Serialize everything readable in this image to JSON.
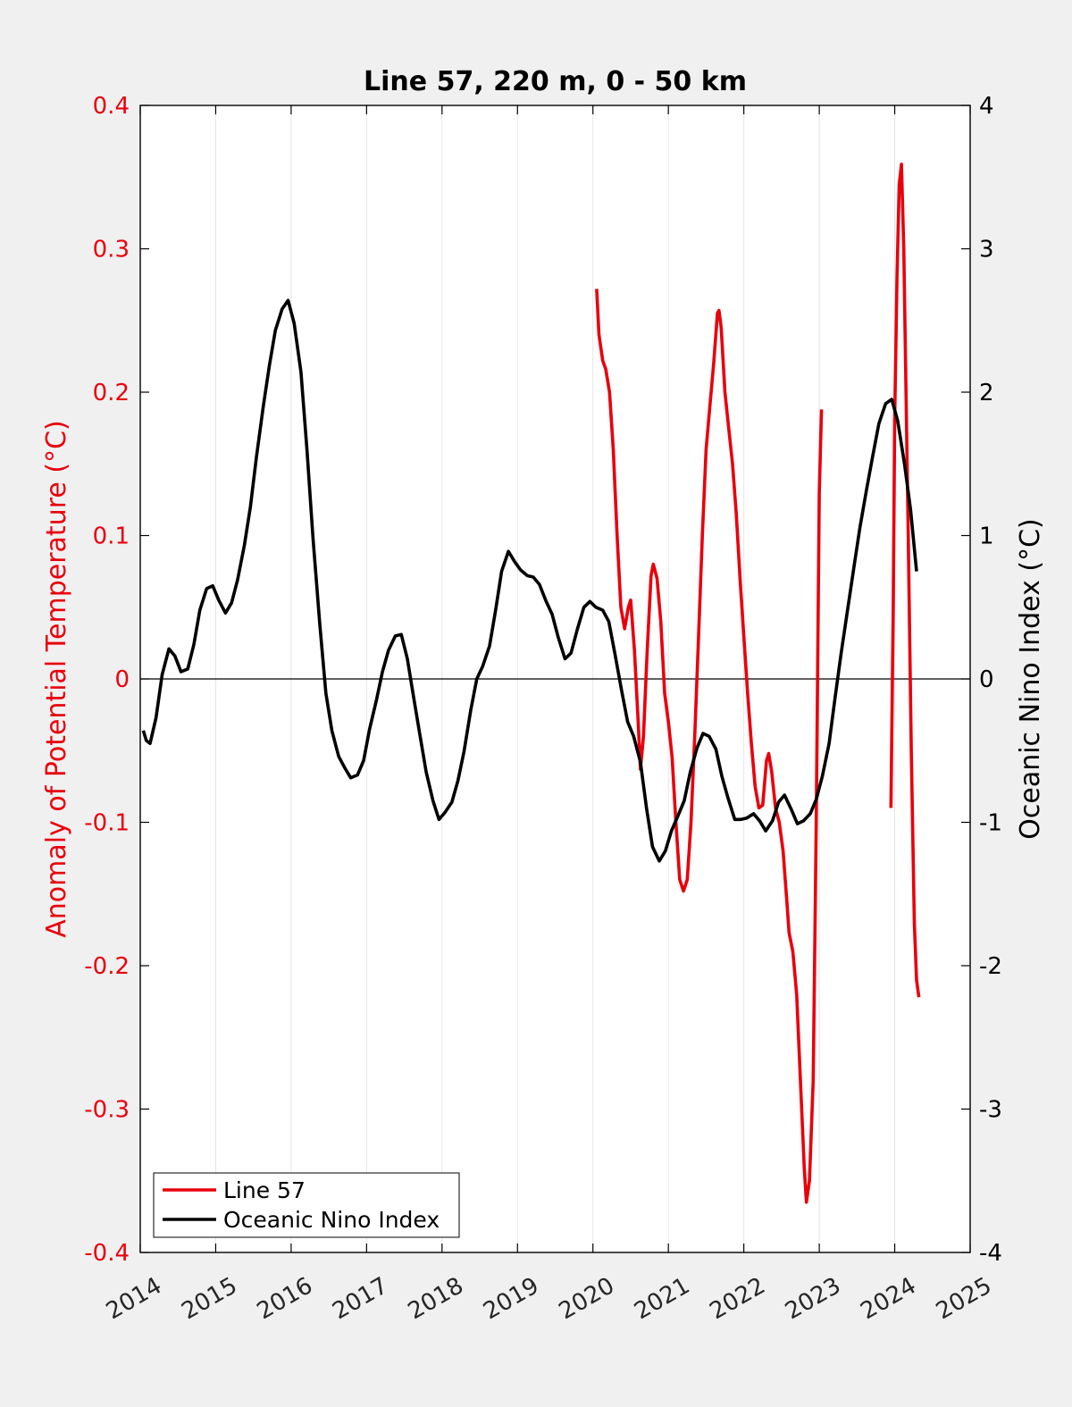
{
  "chart_data": {
    "type": "line",
    "title": "Line 57, 220 m, 0 - 50 km",
    "xlim": [
      2014,
      2025
    ],
    "x_ticks": [
      "2014",
      "2015",
      "2016",
      "2017",
      "2018",
      "2019",
      "2020",
      "2021",
      "2022",
      "2023",
      "2024",
      "2025"
    ],
    "y_left": {
      "label": "Anomaly of Potential Temperature (°C)",
      "lim": [
        -0.4,
        0.4
      ],
      "ticks": [
        "-0.4",
        "-0.3",
        "-0.2",
        "-0.1",
        "0",
        "0.1",
        "0.2",
        "0.3",
        "0.4"
      ],
      "color": "#e8000b"
    },
    "y_right": {
      "label": "Oceanic Nino Index (°C)",
      "lim": [
        -4,
        4
      ],
      "ticks": [
        "-4",
        "-3",
        "-2",
        "-1",
        "0",
        "1",
        "2",
        "3",
        "4"
      ],
      "color": "#000000"
    },
    "grid": "vertical",
    "zero_line": true,
    "legend_position": "bottom-left",
    "series": [
      {
        "name": "Line 57",
        "axis": "left",
        "color": "#e8000b",
        "segments": [
          [
            [
              2020.05,
              0.272
            ],
            [
              2020.08,
              0.24
            ],
            [
              2020.13,
              0.222
            ],
            [
              2020.17,
              0.216
            ],
            [
              2020.22,
              0.2
            ],
            [
              2020.27,
              0.16
            ],
            [
              2020.32,
              0.1
            ],
            [
              2020.37,
              0.05
            ],
            [
              2020.42,
              0.035
            ],
            [
              2020.47,
              0.05
            ],
            [
              2020.5,
              0.055
            ],
            [
              2020.55,
              0.02
            ],
            [
              2020.6,
              -0.03
            ],
            [
              2020.63,
              -0.063
            ],
            [
              2020.67,
              -0.04
            ],
            [
              2020.72,
              0.02
            ],
            [
              2020.77,
              0.072
            ],
            [
              2020.8,
              0.08
            ],
            [
              2020.85,
              0.07
            ],
            [
              2020.9,
              0.04
            ],
            [
              2020.95,
              -0.01
            ],
            [
              2021.0,
              -0.03
            ],
            [
              2021.05,
              -0.055
            ],
            [
              2021.1,
              -0.1
            ],
            [
              2021.15,
              -0.14
            ],
            [
              2021.2,
              -0.148
            ],
            [
              2021.25,
              -0.14
            ],
            [
              2021.3,
              -0.1
            ],
            [
              2021.35,
              -0.04
            ],
            [
              2021.4,
              0.03
            ],
            [
              2021.45,
              0.1
            ],
            [
              2021.5,
              0.16
            ],
            [
              2021.55,
              0.19
            ],
            [
              2021.6,
              0.22
            ],
            [
              2021.65,
              0.255
            ],
            [
              2021.67,
              0.257
            ],
            [
              2021.7,
              0.245
            ],
            [
              2021.75,
              0.2
            ],
            [
              2021.8,
              0.175
            ],
            [
              2021.85,
              0.15
            ],
            [
              2021.9,
              0.115
            ],
            [
              2021.95,
              0.07
            ],
            [
              2022.0,
              0.03
            ],
            [
              2022.05,
              -0.01
            ],
            [
              2022.1,
              -0.045
            ],
            [
              2022.15,
              -0.075
            ],
            [
              2022.2,
              -0.09
            ],
            [
              2022.25,
              -0.088
            ],
            [
              2022.3,
              -0.057
            ],
            [
              2022.33,
              -0.052
            ],
            [
              2022.37,
              -0.065
            ],
            [
              2022.42,
              -0.09
            ],
            [
              2022.47,
              -0.1
            ],
            [
              2022.52,
              -0.12
            ],
            [
              2022.57,
              -0.155
            ],
            [
              2022.6,
              -0.177
            ],
            [
              2022.65,
              -0.19
            ],
            [
              2022.7,
              -0.22
            ],
            [
              2022.75,
              -0.28
            ],
            [
              2022.8,
              -0.34
            ],
            [
              2022.83,
              -0.365
            ],
            [
              2022.87,
              -0.35
            ],
            [
              2022.92,
              -0.28
            ],
            [
              2022.96,
              -0.1
            ],
            [
              2023.0,
              0.13
            ],
            [
              2023.03,
              0.188
            ]
          ],
          [
            [
              2023.95,
              -0.09
            ],
            [
              2023.98,
              0.05
            ],
            [
              2024.0,
              0.18
            ],
            [
              2024.03,
              0.28
            ],
            [
              2024.06,
              0.345
            ],
            [
              2024.09,
              0.359
            ],
            [
              2024.12,
              0.3
            ],
            [
              2024.15,
              0.2
            ],
            [
              2024.18,
              0.1
            ],
            [
              2024.22,
              -0.05
            ],
            [
              2024.26,
              -0.17
            ],
            [
              2024.29,
              -0.21
            ],
            [
              2024.32,
              -0.222
            ]
          ]
        ]
      },
      {
        "name": "Oceanic Nino Index",
        "axis": "right",
        "color": "#000000",
        "points": [
          [
            2014.04,
            -0.36
          ],
          [
            2014.08,
            -0.43
          ],
          [
            2014.13,
            -0.45
          ],
          [
            2014.21,
            -0.27
          ],
          [
            2014.29,
            0.03
          ],
          [
            2014.38,
            0.21
          ],
          [
            2014.46,
            0.16
          ],
          [
            2014.54,
            0.05
          ],
          [
            2014.63,
            0.07
          ],
          [
            2014.71,
            0.24
          ],
          [
            2014.79,
            0.48
          ],
          [
            2014.88,
            0.63
          ],
          [
            2014.96,
            0.65
          ],
          [
            2015.04,
            0.55
          ],
          [
            2015.13,
            0.46
          ],
          [
            2015.21,
            0.53
          ],
          [
            2015.29,
            0.69
          ],
          [
            2015.38,
            0.93
          ],
          [
            2015.46,
            1.2
          ],
          [
            2015.54,
            1.55
          ],
          [
            2015.63,
            1.9
          ],
          [
            2015.71,
            2.18
          ],
          [
            2015.79,
            2.43
          ],
          [
            2015.88,
            2.58
          ],
          [
            2015.96,
            2.64
          ],
          [
            2016.04,
            2.48
          ],
          [
            2016.13,
            2.14
          ],
          [
            2016.21,
            1.6
          ],
          [
            2016.29,
            0.98
          ],
          [
            2016.38,
            0.38
          ],
          [
            2016.46,
            -0.1
          ],
          [
            2016.54,
            -0.36
          ],
          [
            2016.63,
            -0.54
          ],
          [
            2016.71,
            -0.62
          ],
          [
            2016.79,
            -0.69
          ],
          [
            2016.88,
            -0.67
          ],
          [
            2016.96,
            -0.57
          ],
          [
            2017.04,
            -0.35
          ],
          [
            2017.13,
            -0.15
          ],
          [
            2017.21,
            0.05
          ],
          [
            2017.29,
            0.2
          ],
          [
            2017.38,
            0.3
          ],
          [
            2017.46,
            0.31
          ],
          [
            2017.54,
            0.14
          ],
          [
            2017.63,
            -0.15
          ],
          [
            2017.71,
            -0.4
          ],
          [
            2017.79,
            -0.65
          ],
          [
            2017.88,
            -0.85
          ],
          [
            2017.96,
            -0.98
          ],
          [
            2018.04,
            -0.93
          ],
          [
            2018.13,
            -0.86
          ],
          [
            2018.21,
            -0.71
          ],
          [
            2018.29,
            -0.51
          ],
          [
            2018.38,
            -0.22
          ],
          [
            2018.46,
            0.0
          ],
          [
            2018.54,
            0.09
          ],
          [
            2018.63,
            0.23
          ],
          [
            2018.71,
            0.48
          ],
          [
            2018.79,
            0.75
          ],
          [
            2018.88,
            0.89
          ],
          [
            2018.96,
            0.82
          ],
          [
            2019.04,
            0.76
          ],
          [
            2019.13,
            0.72
          ],
          [
            2019.21,
            0.71
          ],
          [
            2019.29,
            0.66
          ],
          [
            2019.38,
            0.54
          ],
          [
            2019.46,
            0.45
          ],
          [
            2019.54,
            0.29
          ],
          [
            2019.63,
            0.14
          ],
          [
            2019.71,
            0.18
          ],
          [
            2019.79,
            0.34
          ],
          [
            2019.88,
            0.5
          ],
          [
            2019.96,
            0.54
          ],
          [
            2020.04,
            0.5
          ],
          [
            2020.13,
            0.48
          ],
          [
            2020.21,
            0.4
          ],
          [
            2020.29,
            0.18
          ],
          [
            2020.38,
            -0.08
          ],
          [
            2020.46,
            -0.3
          ],
          [
            2020.54,
            -0.4
          ],
          [
            2020.63,
            -0.58
          ],
          [
            2020.71,
            -0.9
          ],
          [
            2020.79,
            -1.17
          ],
          [
            2020.88,
            -1.27
          ],
          [
            2020.96,
            -1.2
          ],
          [
            2021.04,
            -1.06
          ],
          [
            2021.13,
            -0.95
          ],
          [
            2021.21,
            -0.85
          ],
          [
            2021.29,
            -0.65
          ],
          [
            2021.38,
            -0.48
          ],
          [
            2021.46,
            -0.38
          ],
          [
            2021.54,
            -0.4
          ],
          [
            2021.63,
            -0.49
          ],
          [
            2021.71,
            -0.68
          ],
          [
            2021.79,
            -0.83
          ],
          [
            2021.88,
            -0.98
          ],
          [
            2021.96,
            -0.98
          ],
          [
            2022.04,
            -0.97
          ],
          [
            2022.13,
            -0.94
          ],
          [
            2022.21,
            -0.99
          ],
          [
            2022.29,
            -1.06
          ],
          [
            2022.38,
            -0.99
          ],
          [
            2022.46,
            -0.86
          ],
          [
            2022.54,
            -0.81
          ],
          [
            2022.63,
            -0.91
          ],
          [
            2022.71,
            -1.01
          ],
          [
            2022.79,
            -0.99
          ],
          [
            2022.88,
            -0.94
          ],
          [
            2022.96,
            -0.84
          ],
          [
            2023.04,
            -0.68
          ],
          [
            2023.13,
            -0.45
          ],
          [
            2023.21,
            -0.13
          ],
          [
            2023.29,
            0.18
          ],
          [
            2023.38,
            0.5
          ],
          [
            2023.46,
            0.78
          ],
          [
            2023.54,
            1.06
          ],
          [
            2023.63,
            1.33
          ],
          [
            2023.71,
            1.56
          ],
          [
            2023.79,
            1.78
          ],
          [
            2023.88,
            1.92
          ],
          [
            2023.96,
            1.95
          ],
          [
            2024.04,
            1.8
          ],
          [
            2024.13,
            1.5
          ],
          [
            2024.21,
            1.18
          ],
          [
            2024.29,
            0.75
          ]
        ]
      }
    ]
  }
}
